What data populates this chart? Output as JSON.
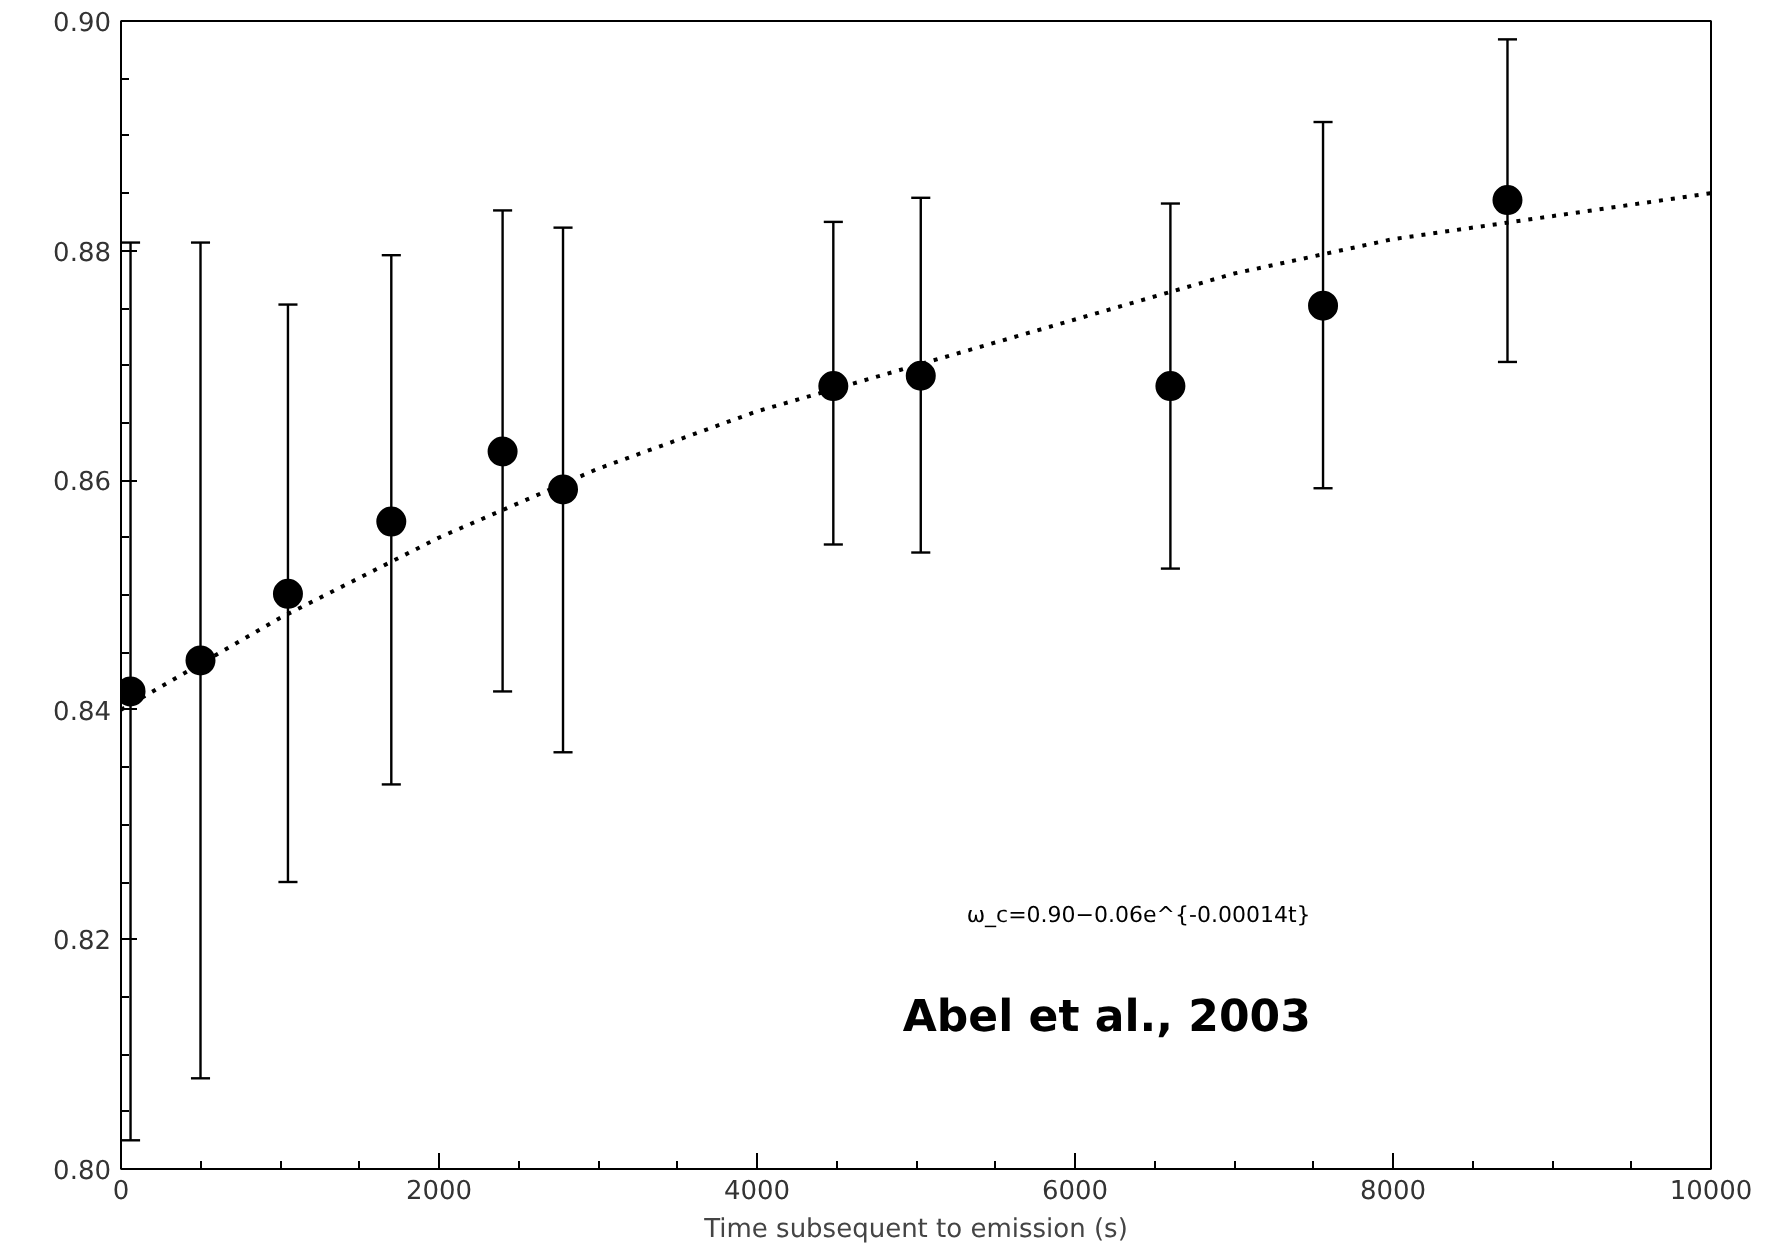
{
  "chart_data": {
    "type": "scatter",
    "xlabel": "Time subsequent to emission (s)",
    "xlim": [
      0,
      10000
    ],
    "xticks": [
      0,
      2000,
      4000,
      6000,
      8000,
      10000
    ],
    "ylim": [
      0.8,
      0.9
    ],
    "yticks": [
      {
        "value": 0.8,
        "label": "0.80"
      },
      0.82,
      0.84,
      0.86,
      0.88,
      {
        "value": 0.9,
        "label": "0.90"
      }
    ],
    "grid": false,
    "series": [
      {
        "color": "#000000",
        "marker": "circle",
        "x": [
          60,
          500,
          1050,
          1700,
          2400,
          2780,
          4480,
          5030,
          6600,
          7560,
          8720
        ],
        "values": [
          0.8416,
          0.8443,
          0.8501,
          0.8564,
          0.8625,
          0.8592,
          0.8682,
          0.8691,
          0.8682,
          0.8752,
          0.8844
        ],
        "errors": [
          [
            0.8025,
            0.8807
          ],
          [
            0.8079,
            0.8807
          ],
          [
            0.825,
            0.8753
          ],
          [
            0.8335,
            0.8796
          ],
          [
            0.8416,
            0.8835
          ],
          [
            0.8363,
            0.882
          ],
          [
            0.8544,
            0.8825
          ],
          [
            0.8537,
            0.8846
          ],
          [
            0.8523,
            0.8841
          ],
          [
            0.8593,
            0.8912
          ],
          [
            0.8703,
            0.8984
          ]
        ]
      },
      {
        "type": "line",
        "color": "#000000",
        "line_style": "dotted",
        "x": [
          0,
          1000,
          2000,
          3000,
          4000,
          5000,
          6000,
          7000,
          8000,
          9000,
          10000
        ],
        "values": [
          0.84,
          0.848,
          0.855,
          0.861,
          0.866,
          0.87,
          0.874,
          0.878,
          0.881,
          0.883,
          0.885
        ]
      }
    ],
    "annotations": [
      "ω_c=0.90−0.06e^{-0.00014t}",
      "Abel et al., 2003"
    ]
  }
}
